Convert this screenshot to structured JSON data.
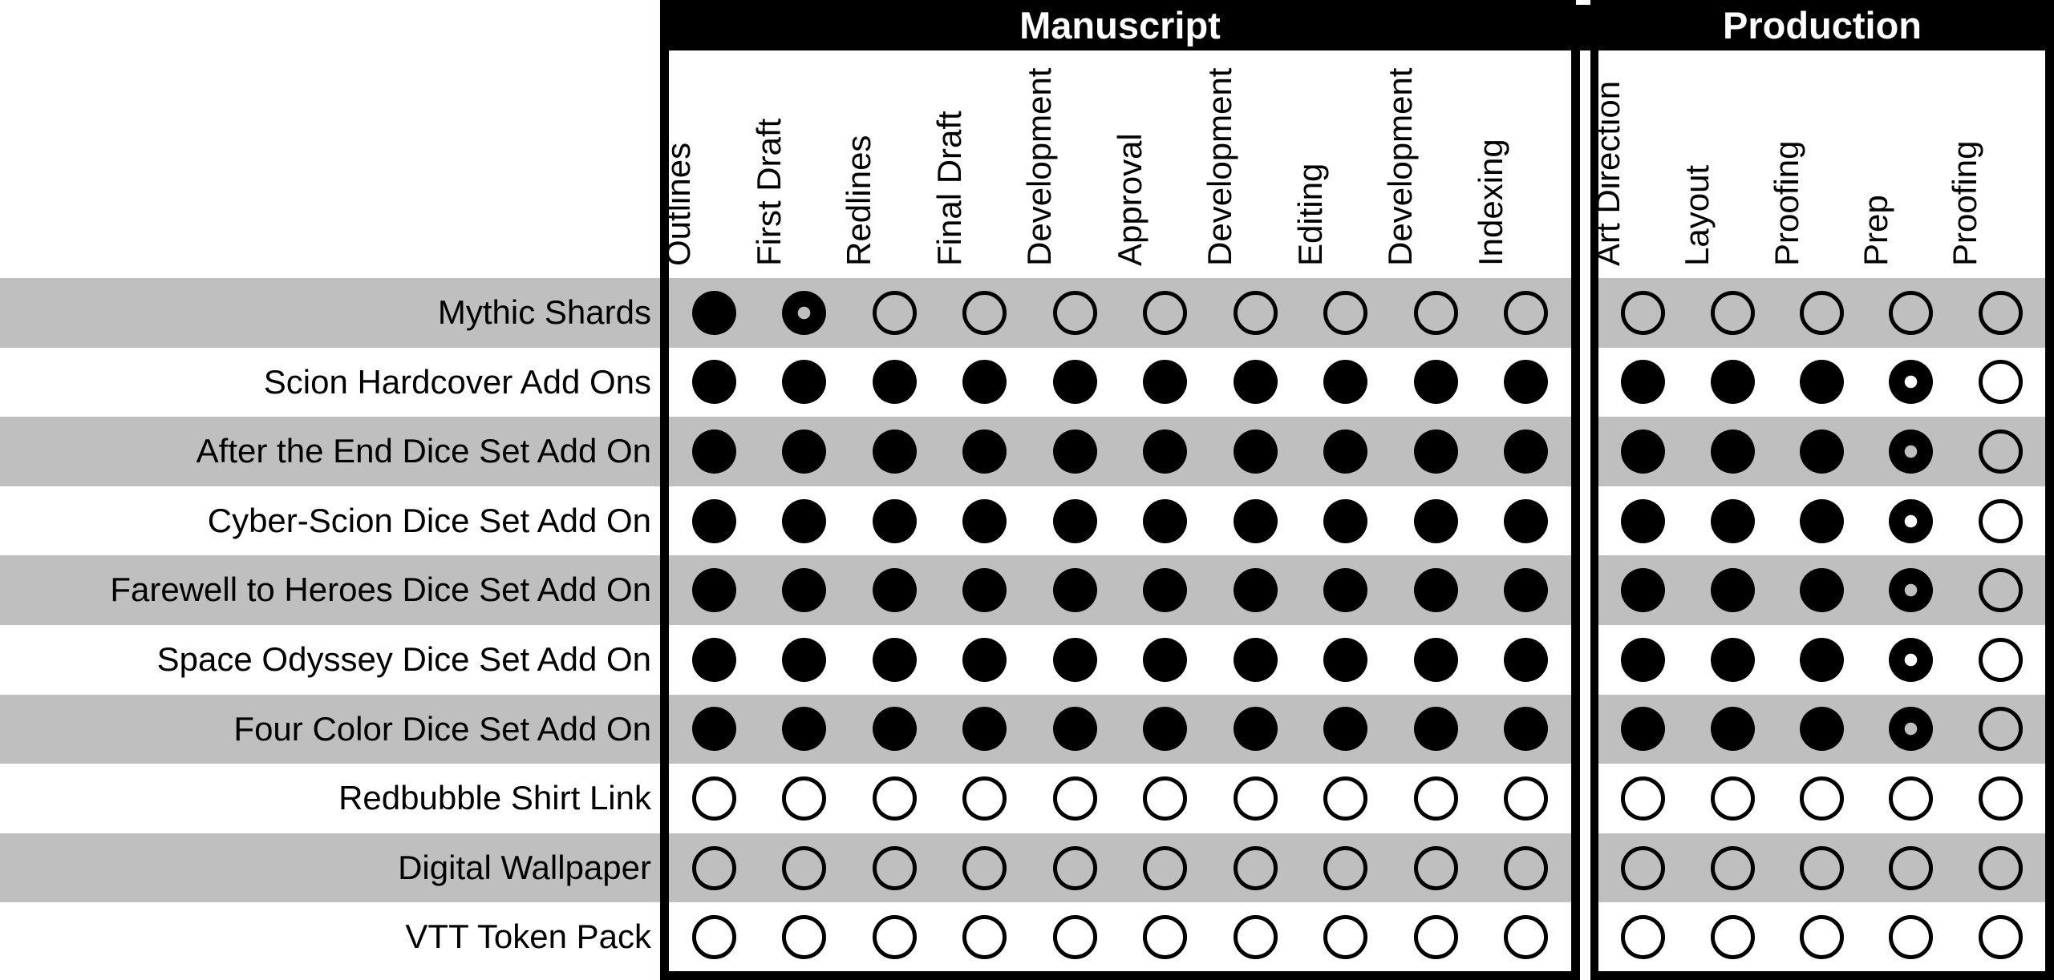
{
  "colors": {
    "stripe": "#BFBFBF",
    "ink": "#000000",
    "header_bg": "#000000",
    "header_text": "#FFFFFF"
  },
  "chart_data": {
    "type": "table",
    "title": "",
    "description": "Project status tracker matrix: rows are products, columns are pipeline stages. Filled circle = complete, filled circle with center dot = in progress, empty circle = not started.",
    "state_legend": {
      "complete": "filled circle",
      "in_progress": "filled circle with small center hole",
      "not_started": "empty circle outline"
    },
    "column_groups": [
      {
        "label": "Manuscript",
        "columns": [
          "Outlines",
          "First Draft",
          "Redlines",
          "Final Draft",
          "Development",
          "Approval",
          "Development",
          "Editing",
          "Development",
          "Indexing"
        ]
      },
      {
        "label": "Production",
        "columns": [
          "Art Direction",
          "Layout",
          "Proofing",
          "Prep",
          "Proofing"
        ]
      }
    ],
    "rows": [
      {
        "label": "Mythic Shards",
        "manuscript": [
          "complete",
          "in_progress",
          "not_started",
          "not_started",
          "not_started",
          "not_started",
          "not_started",
          "not_started",
          "not_started",
          "not_started"
        ],
        "production": [
          "not_started",
          "not_started",
          "not_started",
          "not_started",
          "not_started"
        ]
      },
      {
        "label": "Scion Hardcover Add Ons",
        "manuscript": [
          "complete",
          "complete",
          "complete",
          "complete",
          "complete",
          "complete",
          "complete",
          "complete",
          "complete",
          "complete"
        ],
        "production": [
          "complete",
          "complete",
          "complete",
          "in_progress",
          "not_started"
        ]
      },
      {
        "label": "After the End Dice Set Add On",
        "manuscript": [
          "complete",
          "complete",
          "complete",
          "complete",
          "complete",
          "complete",
          "complete",
          "complete",
          "complete",
          "complete"
        ],
        "production": [
          "complete",
          "complete",
          "complete",
          "in_progress",
          "not_started"
        ]
      },
      {
        "label": "Cyber-Scion Dice Set Add On",
        "manuscript": [
          "complete",
          "complete",
          "complete",
          "complete",
          "complete",
          "complete",
          "complete",
          "complete",
          "complete",
          "complete"
        ],
        "production": [
          "complete",
          "complete",
          "complete",
          "in_progress",
          "not_started"
        ]
      },
      {
        "label": "Farewell to Heroes Dice Set Add On",
        "manuscript": [
          "complete",
          "complete",
          "complete",
          "complete",
          "complete",
          "complete",
          "complete",
          "complete",
          "complete",
          "complete"
        ],
        "production": [
          "complete",
          "complete",
          "complete",
          "in_progress",
          "not_started"
        ]
      },
      {
        "label": "Space Odyssey Dice Set Add On",
        "manuscript": [
          "complete",
          "complete",
          "complete",
          "complete",
          "complete",
          "complete",
          "complete",
          "complete",
          "complete",
          "complete"
        ],
        "production": [
          "complete",
          "complete",
          "complete",
          "in_progress",
          "not_started"
        ]
      },
      {
        "label": "Four Color Dice Set Add On",
        "manuscript": [
          "complete",
          "complete",
          "complete",
          "complete",
          "complete",
          "complete",
          "complete",
          "complete",
          "complete",
          "complete"
        ],
        "production": [
          "complete",
          "complete",
          "complete",
          "in_progress",
          "not_started"
        ]
      },
      {
        "label": "Redbubble Shirt Link",
        "manuscript": [
          "not_started",
          "not_started",
          "not_started",
          "not_started",
          "not_started",
          "not_started",
          "not_started",
          "not_started",
          "not_started",
          "not_started"
        ],
        "production": [
          "not_started",
          "not_started",
          "not_started",
          "not_started",
          "not_started"
        ]
      },
      {
        "label": "Digital Wallpaper",
        "manuscript": [
          "not_started",
          "not_started",
          "not_started",
          "not_started",
          "not_started",
          "not_started",
          "not_started",
          "not_started",
          "not_started",
          "not_started"
        ],
        "production": [
          "not_started",
          "not_started",
          "not_started",
          "not_started",
          "not_started"
        ]
      },
      {
        "label": "VTT Token Pack",
        "manuscript": [
          "not_started",
          "not_started",
          "not_started",
          "not_started",
          "not_started",
          "not_started",
          "not_started",
          "not_started",
          "not_started",
          "not_started"
        ],
        "production": [
          "not_started",
          "not_started",
          "not_started",
          "not_started",
          "not_started"
        ]
      }
    ]
  }
}
